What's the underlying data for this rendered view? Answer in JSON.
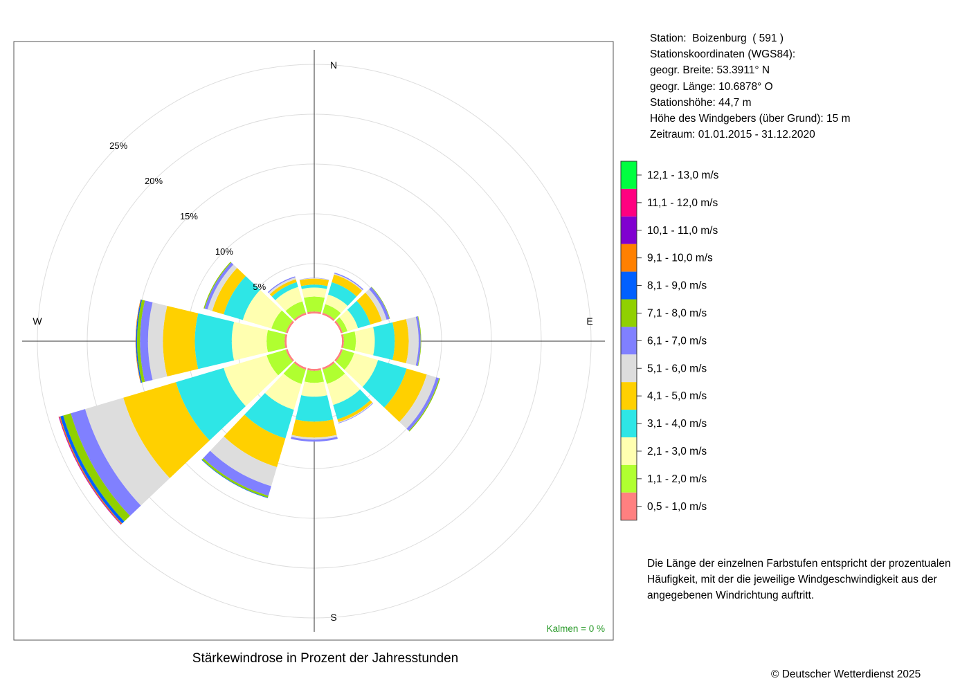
{
  "station_info": {
    "station": "Station:  Boizenburg  ( 591 )",
    "coords_heading": "Stationskoordinaten (WGS84):",
    "latitude": "geogr. Breite: 53.3911° N",
    "longitude": "geogr. Länge: 10.6878° O",
    "station_height": "Stationshöhe: 44,7 m",
    "anemometer_height": "Höhe des Windgebers (über Grund): 15 m",
    "period": "Zeitraum: 01.01.2015 - 31.12.2020"
  },
  "note_lines": [
    "Die Länge der einzelnen Farbstufen entspricht der prozentualen",
    "Häufigkeit, mit der die jeweilige Windgeschwindigkeit aus der",
    "angegebenen Windrichtung auftritt."
  ],
  "calm_label": "Kalmen  =  0 %",
  "title": "Stärkewindrose in Prozent der Jahresstunden",
  "copyright": "© Deutscher Wetterdienst  2025",
  "compass_labels": [
    "N",
    "E",
    "S",
    "W"
  ],
  "legend": [
    {
      "label": "12,1 - 13,0 m/s",
      "color": "#00ff40"
    },
    {
      "label": "11,1 - 12,0 m/s",
      "color": "#ff0080"
    },
    {
      "label": "10,1 - 11,0 m/s",
      "color": "#8000d0"
    },
    {
      "label": "9,1 - 10,0 m/s",
      "color": "#ff8000"
    },
    {
      "label": "8,1 - 9,0 m/s",
      "color": "#0060ff"
    },
    {
      "label": "7,1 - 8,0 m/s",
      "color": "#90d000"
    },
    {
      "label": "6,1 - 7,0 m/s",
      "color": "#8080ff"
    },
    {
      "label": "5,1 - 6,0 m/s",
      "color": "#dddddd"
    },
    {
      "label": "4,1 - 5,0 m/s",
      "color": "#ffd000"
    },
    {
      "label": "3,1 - 4,0 m/s",
      "color": "#2ee6e6"
    },
    {
      "label": "2,1 - 3,0 m/s",
      "color": "#ffffb0"
    },
    {
      "label": "1,1 - 2,0 m/s",
      "color": "#b0ff30"
    },
    {
      "label": "0,5 - 1,0 m/s",
      "color": "#ff8080"
    }
  ],
  "chart_data": {
    "type": "wind-rose",
    "title": "Stärkewindrose in Prozent der Jahresstunden",
    "ring_labels": [
      "5%",
      "10%",
      "15%",
      "20%",
      "25%"
    ],
    "rings": [
      5,
      10,
      15,
      20,
      25
    ],
    "directions": [
      0,
      30,
      60,
      90,
      120,
      150,
      180,
      210,
      240,
      270,
      300,
      330
    ],
    "speed_classes": [
      "0,5 - 1,0 m/s",
      "1,1 - 2,0 m/s",
      "2,1 - 3,0 m/s",
      "3,1 - 4,0 m/s",
      "4,1 - 5,0 m/s",
      "5,1 - 6,0 m/s",
      "6,1 - 7,0 m/s",
      "7,1 - 8,0 m/s",
      "8,1 - 9,0 m/s",
      "9,1 - 10,0 m/s",
      "10,1 - 11,0 m/s",
      "11,1 - 12,0 m/s",
      "12,1 - 13,0 m/s"
    ],
    "values": [
      [
        0.2,
        1.5,
        0.9,
        0.3,
        0.6,
        0.05,
        0.02,
        0,
        0,
        0,
        0,
        0,
        0
      ],
      [
        0.2,
        0.9,
        1.0,
        1.3,
        0.8,
        0.1,
        0.1,
        0,
        0,
        0,
        0,
        0,
        0
      ],
      [
        0.2,
        0.5,
        1.1,
        1.3,
        1.2,
        0.5,
        0.3,
        0.05,
        0,
        0,
        0,
        0,
        0
      ],
      [
        0.2,
        1.2,
        1.9,
        2.0,
        1.4,
        1.0,
        0.2,
        0.05,
        0,
        0,
        0,
        0,
        0
      ],
      [
        0.2,
        1.2,
        2.5,
        3.0,
        2.1,
        1.0,
        0.3,
        0.1,
        0,
        0,
        0,
        0,
        0
      ],
      [
        0.2,
        1.5,
        2.2,
        1.5,
        0.3,
        0.08,
        0.05,
        0,
        0,
        0,
        0,
        0,
        0
      ],
      [
        0.2,
        1.2,
        1.4,
        2.5,
        1.6,
        0.2,
        0.2,
        0,
        0,
        0,
        0,
        0,
        0
      ],
      [
        0.2,
        1.5,
        2.7,
        3.0,
        3.0,
        2.0,
        1.0,
        0.2,
        0.05,
        0,
        0,
        0,
        0
      ],
      [
        0.2,
        2.0,
        4.5,
        5.0,
        5.5,
        4.0,
        1.5,
        0.8,
        0.3,
        0.1,
        0.05,
        0.03,
        0
      ],
      [
        0.2,
        1.8,
        3.5,
        3.7,
        3.2,
        1.5,
        0.8,
        0.3,
        0.1,
        0.05,
        0,
        0,
        0
      ],
      [
        0.2,
        1.5,
        3.0,
        2.0,
        1.2,
        0.5,
        0.3,
        0.1,
        0,
        0,
        0,
        0,
        0
      ],
      [
        0.2,
        1.2,
        1.5,
        0.5,
        0.3,
        0.2,
        0.1,
        0,
        0,
        0,
        0,
        0,
        0
      ]
    ]
  }
}
